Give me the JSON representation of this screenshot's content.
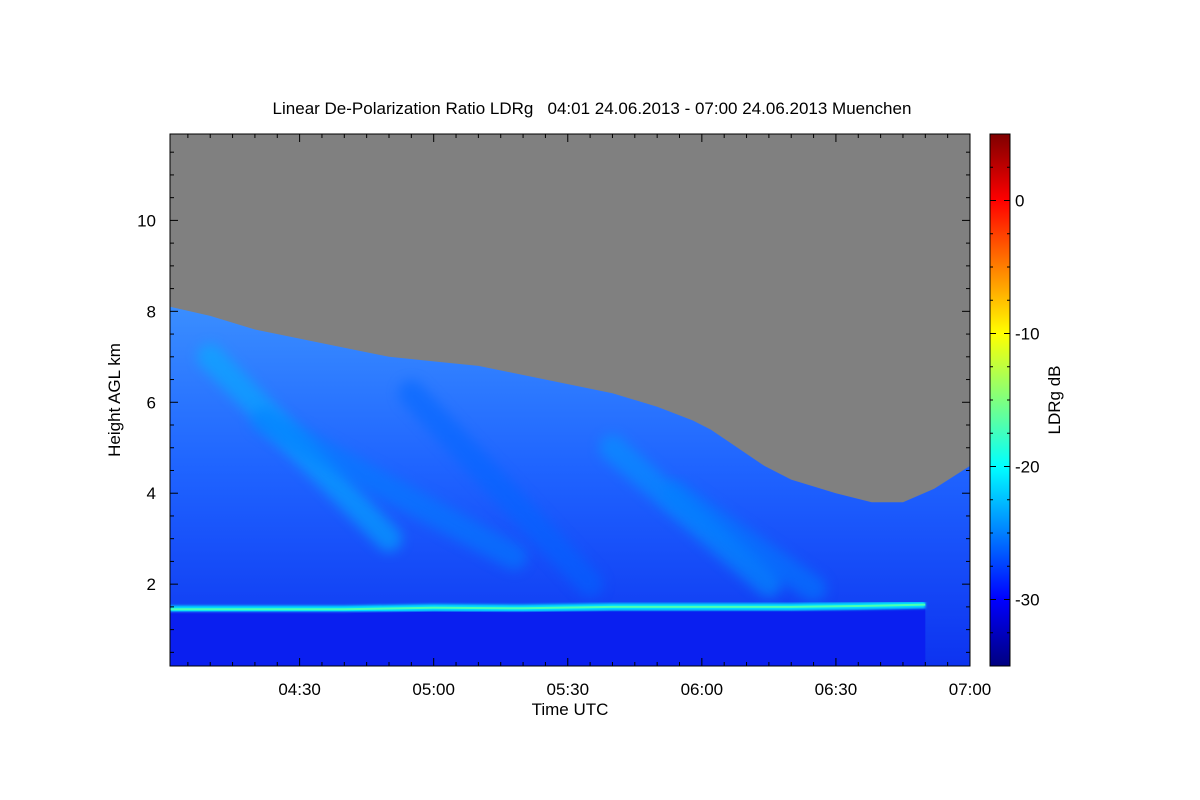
{
  "chart_data": {
    "type": "heatmap",
    "title": "Linear De-Polarization Ratio LDRg   04:01 24.06.2013 - 07:00 24.06.2013 Muenchen",
    "xlabel": "Time UTC",
    "ylabel": "Height AGL km",
    "colorbar_label": "LDRg dB",
    "x_range_minutes_utc": [
      241,
      420
    ],
    "x_ticks": [
      {
        "minutes": 270,
        "label": "04:30"
      },
      {
        "minutes": 300,
        "label": "05:00"
      },
      {
        "minutes": 330,
        "label": "05:30"
      },
      {
        "minutes": 360,
        "label": "06:00"
      },
      {
        "minutes": 390,
        "label": "06:30"
      },
      {
        "minutes": 420,
        "label": "07:00"
      }
    ],
    "y_range_km": [
      0.2,
      11.9
    ],
    "y_ticks": [
      {
        "value": 2,
        "label": "2"
      },
      {
        "value": 4,
        "label": "4"
      },
      {
        "value": 6,
        "label": "6"
      },
      {
        "value": 8,
        "label": "8"
      },
      {
        "value": 10,
        "label": "10"
      }
    ],
    "colorbar_range_db": [
      -35,
      5
    ],
    "colorbar_ticks": [
      {
        "value": 0,
        "label": "0"
      },
      {
        "value": -10,
        "label": "-10"
      },
      {
        "value": -20,
        "label": "-20"
      },
      {
        "value": -30,
        "label": "-30"
      }
    ],
    "colormap": [
      "#00007f",
      "#0000ff",
      "#007fff",
      "#00ffff",
      "#7fff7f",
      "#ffff00",
      "#ff7f00",
      "#ff0000",
      "#7f0000"
    ],
    "no_data_color": "#808080",
    "signal_top_km": [
      [
        241,
        8.1
      ],
      [
        250,
        7.9
      ],
      [
        260,
        7.6
      ],
      [
        270,
        7.4
      ],
      [
        280,
        7.2
      ],
      [
        290,
        7.0
      ],
      [
        300,
        6.9
      ],
      [
        310,
        6.8
      ],
      [
        320,
        6.6
      ],
      [
        330,
        6.4
      ],
      [
        340,
        6.2
      ],
      [
        350,
        5.9
      ],
      [
        358,
        5.6
      ],
      [
        362,
        5.4
      ],
      [
        368,
        5.0
      ],
      [
        374,
        4.6
      ],
      [
        380,
        4.3
      ],
      [
        390,
        4.0
      ],
      [
        398,
        3.8
      ],
      [
        405,
        3.8
      ],
      [
        412,
        4.1
      ],
      [
        420,
        4.6
      ]
    ],
    "cloud_layer_km": [
      [
        241,
        1.45
      ],
      [
        260,
        1.45
      ],
      [
        280,
        1.45
      ],
      [
        300,
        1.48
      ],
      [
        320,
        1.47
      ],
      [
        340,
        1.5
      ],
      [
        360,
        1.5
      ],
      [
        380,
        1.5
      ],
      [
        395,
        1.52
      ],
      [
        410,
        1.55
      ]
    ],
    "fall_streaks": [
      {
        "x": [
          250,
          290
        ],
        "y": [
          7.0,
          3.0
        ],
        "ldr_db": -23
      },
      {
        "x": [
          262,
          318
        ],
        "y": [
          5.6,
          2.6
        ],
        "ldr_db": -25
      },
      {
        "x": [
          295,
          335
        ],
        "y": [
          6.2,
          2.0
        ],
        "ldr_db": -26
      },
      {
        "x": [
          340,
          375
        ],
        "y": [
          5.0,
          2.0
        ],
        "ldr_db": -24
      },
      {
        "x": [
          354,
          385
        ],
        "y": [
          4.0,
          1.9
        ],
        "ldr_db": -25
      }
    ]
  }
}
